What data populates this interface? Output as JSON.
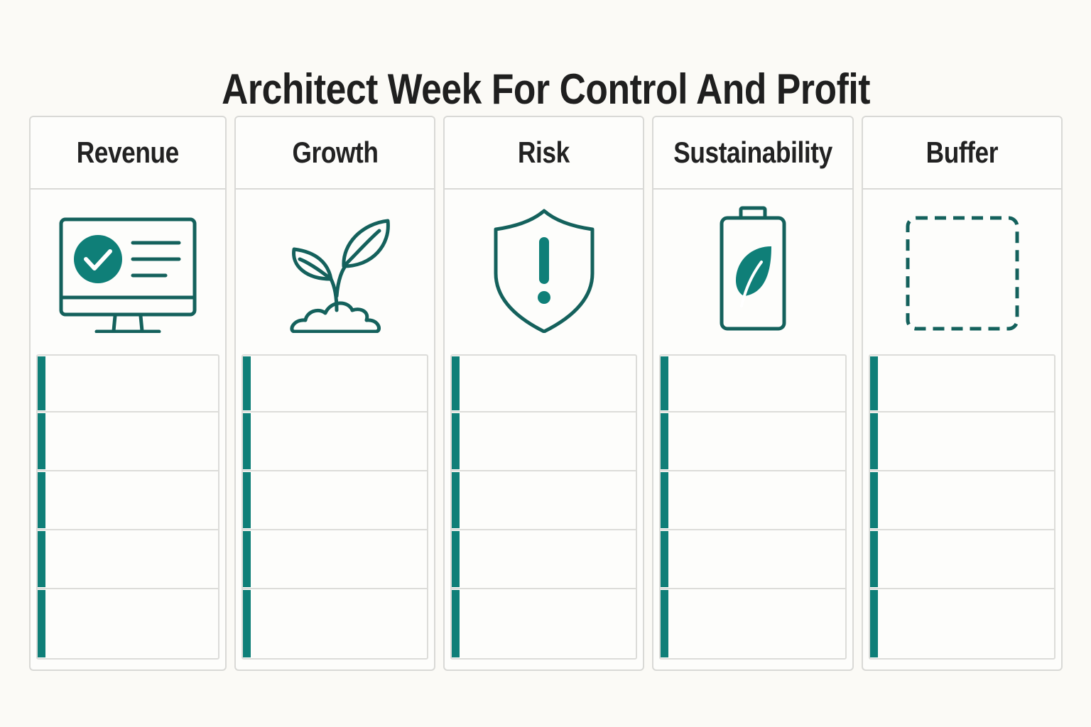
{
  "title": "Architect Week For Control And Profit",
  "colors": {
    "accent": "#0f7f78",
    "icon_stroke": "#14615c",
    "border": "#d9d9d6",
    "background": "#fbfaf6",
    "text": "#1f1f1f"
  },
  "columns": [
    {
      "label": "Revenue",
      "icon": "monitor-checkmark-icon",
      "slot_count": 5
    },
    {
      "label": "Growth",
      "icon": "sprout-icon",
      "slot_count": 5
    },
    {
      "label": "Risk",
      "icon": "shield-alert-icon",
      "slot_count": 5
    },
    {
      "label": "Sustainability",
      "icon": "battery-leaf-icon",
      "slot_count": 5
    },
    {
      "label": "Buffer",
      "icon": "dashed-square-icon",
      "slot_count": 5
    }
  ]
}
